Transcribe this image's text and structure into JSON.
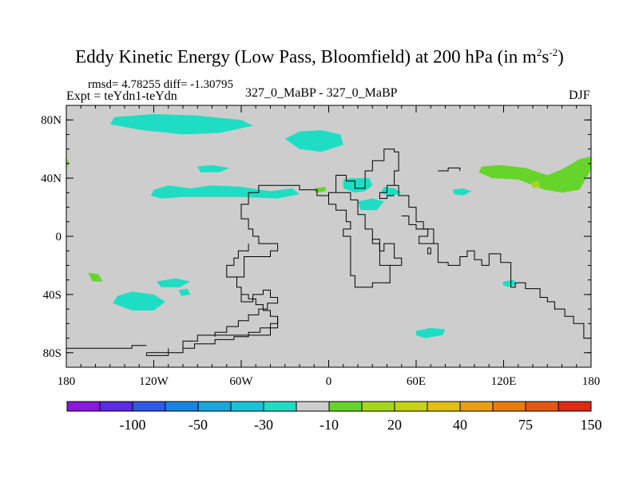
{
  "title": {
    "main": "Eddy Kinetic Energy (Low Pass, Bloomfield) at 200 hPa (in m",
    "sup1": "2",
    "mid": "s",
    "sup2": "-2",
    "close": ")"
  },
  "stats_line": "rmsd= 4.78255 diff= -1.30795",
  "expt_line": "Expt = teYdn1-teYdn",
  "center_label": "327_0_MaBP - 327_0_MaBP",
  "season_label": "DJF",
  "chart_data": {
    "type": "contour-map",
    "xlim": [
      -180,
      180
    ],
    "ylim": [
      -90,
      90
    ],
    "x_ticks": [
      {
        "value": -180,
        "label": "180"
      },
      {
        "value": -120,
        "label": "120W"
      },
      {
        "value": -60,
        "label": "60W"
      },
      {
        "value": 0,
        "label": "0"
      },
      {
        "value": 60,
        "label": "60E"
      },
      {
        "value": 120,
        "label": "120E"
      },
      {
        "value": 180,
        "label": "180"
      }
    ],
    "y_ticks": [
      {
        "value": 80,
        "label": "80N"
      },
      {
        "value": 40,
        "label": "40N"
      },
      {
        "value": 0,
        "label": "0"
      },
      {
        "value": -40,
        "label": "40S"
      },
      {
        "value": -80,
        "label": "80S"
      }
    ],
    "background_color": "#cdcdcd",
    "colorbar": {
      "colors": [
        "#8a17e0",
        "#5a2be8",
        "#2f5ae8",
        "#1b84e0",
        "#1aa6db",
        "#19c4d8",
        "#1fddc3",
        "#cdcdcd",
        "#66d42a",
        "#a6d81a",
        "#c8d214",
        "#e0c010",
        "#e8a010",
        "#e67c10",
        "#e45814",
        "#e02a14"
      ],
      "labels": [
        {
          "after_index": 1,
          "text": "-100"
        },
        {
          "after_index": 3,
          "text": "-50"
        },
        {
          "after_index": 5,
          "text": "-30"
        },
        {
          "after_index": 7,
          "text": "-10"
        },
        {
          "after_index": 9,
          "text": "20"
        },
        {
          "after_index": 11,
          "text": "40"
        },
        {
          "after_index": 13,
          "text": "75"
        },
        {
          "after_index": 15,
          "text": "150"
        }
      ]
    },
    "regions": [
      {
        "name": "arctic-negative-1",
        "level": "-10",
        "lonlat": [
          [
            -147,
            82
          ],
          [
            -120,
            84
          ],
          [
            -90,
            83
          ],
          [
            -60,
            80
          ],
          [
            -52,
            76
          ],
          [
            -75,
            71
          ],
          [
            -100,
            70
          ],
          [
            -128,
            73
          ],
          [
            -150,
            77
          ]
        ]
      },
      {
        "name": "arctic-negative-2",
        "level": "-10",
        "lonlat": [
          [
            -30,
            67
          ],
          [
            -20,
            72
          ],
          [
            -5,
            73
          ],
          [
            8,
            70
          ],
          [
            10,
            63
          ],
          [
            -5,
            58
          ],
          [
            -20,
            60
          ]
        ]
      },
      {
        "name": "pacific-negative",
        "level": "-10",
        "lonlat": [
          [
            -120,
            32
          ],
          [
            -110,
            35
          ],
          [
            -95,
            33
          ],
          [
            -80,
            35
          ],
          [
            -60,
            34
          ],
          [
            -40,
            31
          ],
          [
            -25,
            33
          ],
          [
            -20,
            29
          ],
          [
            -35,
            26
          ],
          [
            -60,
            27
          ],
          [
            -85,
            27
          ],
          [
            -100,
            27
          ],
          [
            -115,
            26
          ],
          [
            -122,
            28
          ]
        ]
      },
      {
        "name": "na-negative",
        "level": "-10",
        "lonlat": [
          [
            -90,
            48
          ],
          [
            -80,
            49
          ],
          [
            -68,
            47
          ],
          [
            -75,
            44
          ],
          [
            -88,
            44
          ]
        ]
      },
      {
        "name": "europe-negative",
        "level": "-10",
        "lonlat": [
          [
            10,
            39
          ],
          [
            15,
            40
          ],
          [
            28,
            40
          ],
          [
            30,
            35
          ],
          [
            25,
            31
          ],
          [
            18,
            30
          ],
          [
            10,
            33
          ]
        ]
      },
      {
        "name": "mideast-negative",
        "level": "-10",
        "lonlat": [
          [
            20,
            24
          ],
          [
            30,
            26
          ],
          [
            38,
            24
          ],
          [
            33,
            18
          ],
          [
            22,
            18
          ]
        ]
      },
      {
        "name": "asia-negative",
        "level": "-10",
        "lonlat": [
          [
            38,
            34
          ],
          [
            45,
            33
          ],
          [
            50,
            30
          ],
          [
            42,
            27
          ],
          [
            36,
            30
          ]
        ]
      },
      {
        "name": "china-negative",
        "level": "-10",
        "lonlat": [
          [
            85,
            32
          ],
          [
            92,
            33
          ],
          [
            98,
            31
          ],
          [
            92,
            28
          ],
          [
            86,
            29
          ]
        ]
      },
      {
        "name": "southpac-negative-1",
        "level": "-10",
        "lonlat": [
          [
            -145,
            -41
          ],
          [
            -135,
            -38
          ],
          [
            -120,
            -40
          ],
          [
            -112,
            -45
          ],
          [
            -120,
            -51
          ],
          [
            -135,
            -51
          ],
          [
            -148,
            -46
          ]
        ]
      },
      {
        "name": "southpac-negative-2",
        "level": "-10",
        "lonlat": [
          [
            -118,
            -31
          ],
          [
            -105,
            -29
          ],
          [
            -95,
            -31
          ],
          [
            -102,
            -35
          ],
          [
            -115,
            -35
          ]
        ]
      },
      {
        "name": "southpac-negative-3",
        "level": "-10",
        "lonlat": [
          [
            -103,
            -37
          ],
          [
            -97,
            -36
          ],
          [
            -95,
            -40
          ],
          [
            -101,
            -41
          ]
        ]
      },
      {
        "name": "southern-ocean-negative",
        "level": "-10",
        "lonlat": [
          [
            60,
            -65
          ],
          [
            70,
            -63
          ],
          [
            80,
            -64
          ],
          [
            78,
            -68
          ],
          [
            66,
            -70
          ],
          [
            60,
            -68
          ]
        ]
      },
      {
        "name": "indian-negative",
        "level": "-10",
        "lonlat": [
          [
            120,
            -31
          ],
          [
            127,
            -30
          ],
          [
            129,
            -33
          ],
          [
            123,
            -35
          ],
          [
            119,
            -33
          ]
        ]
      },
      {
        "name": "westpac-positive",
        "level": "20",
        "lonlat": [
          [
            105,
            48
          ],
          [
            118,
            49
          ],
          [
            135,
            47
          ],
          [
            150,
            42
          ],
          [
            160,
            46
          ],
          [
            172,
            53
          ],
          [
            180,
            55
          ],
          [
            180,
            46
          ],
          [
            172,
            32
          ],
          [
            160,
            30
          ],
          [
            148,
            32
          ],
          [
            130,
            39
          ],
          [
            112,
            40
          ],
          [
            103,
            44
          ]
        ]
      },
      {
        "name": "westpac-inner-positive",
        "level": "30",
        "lonlat": [
          [
            139,
            37
          ],
          [
            144,
            38
          ],
          [
            145,
            34
          ],
          [
            140,
            33
          ]
        ]
      },
      {
        "name": "mediterranean-positive",
        "level": "20",
        "lonlat": [
          [
            -10,
            33
          ],
          [
            -2,
            34
          ],
          [
            -2,
            31
          ],
          [
            -9,
            30
          ]
        ]
      },
      {
        "name": "southpac-positive",
        "level": "20",
        "lonlat": [
          [
            -165,
            -25
          ],
          [
            -158,
            -26
          ],
          [
            -155,
            -31
          ],
          [
            -162,
            -31
          ]
        ]
      },
      {
        "name": "dateline-positive",
        "level": "20",
        "lonlat": [
          [
            -180,
            54
          ],
          [
            -178,
            50
          ],
          [
            -180,
            48
          ]
        ]
      }
    ]
  }
}
